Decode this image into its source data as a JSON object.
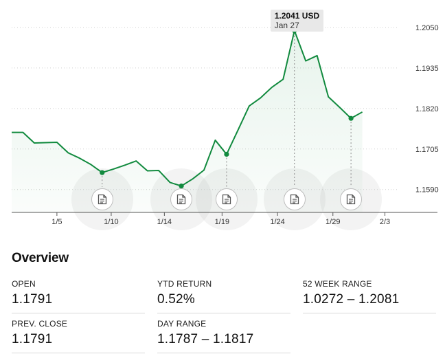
{
  "chart_data": {
    "type": "line",
    "y_ticks": [
      "1.2050",
      "1.1935",
      "1.1820",
      "1.1705",
      "1.1590"
    ],
    "x_ticks": [
      "1/5",
      "1/10",
      "1/14",
      "1/19",
      "1/24",
      "1/29",
      "2/3"
    ],
    "ylim": [
      1.1525,
      1.2085
    ],
    "line_color": "#118a3e",
    "series": [
      {
        "values": [
          [
            1,
            1.1752
          ],
          [
            2,
            1.1752
          ],
          [
            3,
            1.1722
          ],
          [
            4,
            1.1723
          ],
          [
            5,
            1.1724
          ],
          [
            6,
            1.1694
          ],
          [
            7,
            1.1679
          ],
          [
            8,
            1.1661
          ],
          [
            9,
            1.1638
          ],
          [
            10,
            1.1648
          ],
          [
            11,
            1.1659
          ],
          [
            12,
            1.1671
          ],
          [
            13,
            1.1643
          ],
          [
            14,
            1.1644
          ],
          [
            15,
            1.161
          ],
          [
            16,
            1.16
          ],
          [
            17,
            1.162
          ],
          [
            18,
            1.1645
          ],
          [
            19,
            1.173
          ],
          [
            20,
            1.169
          ],
          [
            21,
            1.1758
          ],
          [
            22,
            1.1827
          ],
          [
            23,
            1.185
          ],
          [
            24,
            1.188
          ],
          [
            25,
            1.1903
          ],
          [
            26,
            1.2041
          ],
          [
            27,
            1.1955
          ],
          [
            28,
            1.197
          ],
          [
            29,
            1.1853
          ],
          [
            30,
            1.1823
          ],
          [
            31,
            1.1792
          ],
          [
            32,
            1.181
          ]
        ]
      }
    ],
    "markers": [
      9,
      16,
      20,
      26,
      31
    ],
    "x_tick_positions": [
      5,
      9.8,
      14.5,
      19.6,
      24.5,
      29.4,
      34
    ],
    "tooltip": {
      "value": "1.2041 USD",
      "date": "Jan 27",
      "x": 26
    }
  },
  "overview": {
    "title": "Overview",
    "stats": [
      {
        "label": "OPEN",
        "value": "1.1791"
      },
      {
        "label": "YTD RETURN",
        "value": "0.52%"
      },
      {
        "label": "52 WEEK RANGE",
        "value": "1.0272 – 1.2081"
      },
      {
        "label": "PREV. CLOSE",
        "value": "1.1791"
      },
      {
        "label": "DAY RANGE",
        "value": "1.1787 – 1.1817"
      }
    ]
  }
}
